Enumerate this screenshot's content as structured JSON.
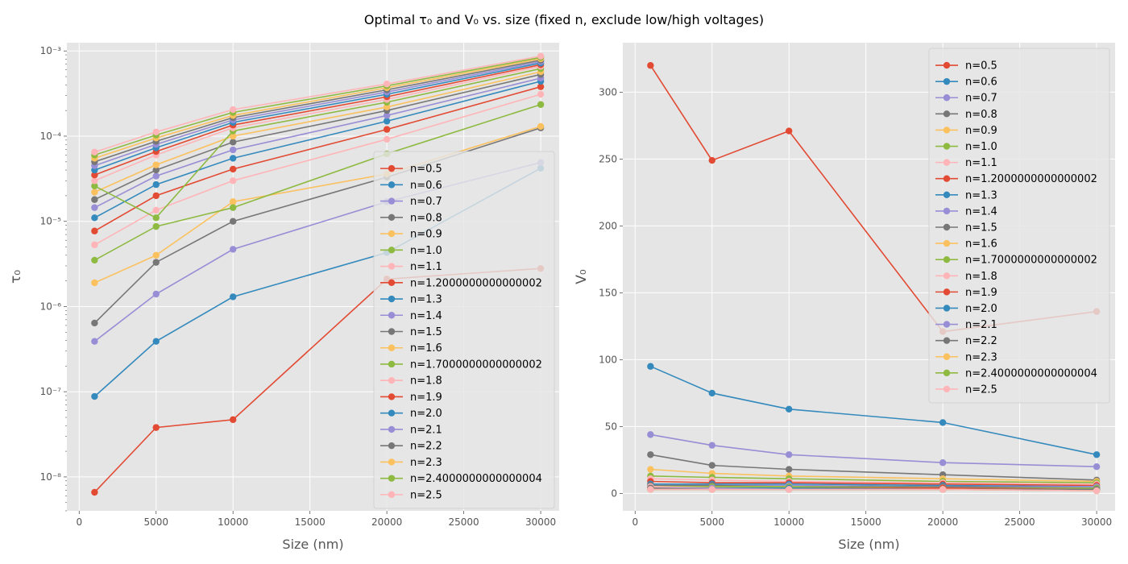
{
  "figure_title": "Optimal τ₀ and V₀ vs. size (fixed n, exclude low/high voltages)",
  "palette": [
    "#E24A33",
    "#348ABD",
    "#988ED5",
    "#777777",
    "#FBC15E",
    "#8EBA42",
    "#FFB5B8"
  ],
  "chart_data": [
    {
      "type": "line",
      "xlabel": "Size (nm)",
      "ylabel": "τ₀",
      "yscale": "log",
      "xlim": [
        -800,
        31200
      ],
      "ylim": [
        4e-09,
        0.00125
      ],
      "x_ticks": [
        0,
        5000,
        10000,
        15000,
        20000,
        25000,
        30000
      ],
      "x_tick_labels": [
        "0",
        "5000",
        "10000",
        "15000",
        "20000",
        "25000",
        "30000"
      ],
      "y_ticks": [
        1e-08,
        1e-07,
        1e-06,
        1e-05,
        0.0001,
        0.001
      ],
      "y_tick_labels": [
        "10⁻⁸",
        "10⁻⁷",
        "10⁻⁶",
        "10⁻⁵",
        "10⁻⁴",
        "10⁻³"
      ],
      "grid": true,
      "legend_position": "lower-right",
      "x": [
        1000,
        5000,
        10000,
        20000,
        30000
      ],
      "series": [
        {
          "name": "n=0.5",
          "values": [
            6.6e-09,
            3.8e-08,
            4.7e-08,
            2.1e-06,
            2.8e-06
          ]
        },
        {
          "name": "n=0.6",
          "values": [
            8.8e-08,
            3.9e-07,
            1.3e-06,
            4.3e-06,
            4.2e-05
          ]
        },
        {
          "name": "n=0.7",
          "values": [
            3.9e-07,
            1.4e-06,
            4.7e-06,
            1.7e-05,
            4.9e-05
          ]
        },
        {
          "name": "n=0.8",
          "values": [
            6.4e-07,
            3.3e-06,
            1e-05,
            3.3e-05,
            0.000125
          ]
        },
        {
          "name": "n=0.9",
          "values": [
            1.9e-06,
            4e-06,
            1.7e-05,
            3.6e-05,
            0.00013
          ]
        },
        {
          "name": "n=1.0",
          "values": [
            3.5e-06,
            8.7e-06,
            1.45e-05,
            6.2e-05,
            0.000235
          ]
        },
        {
          "name": "n=1.1",
          "values": [
            5.3e-06,
            1.35e-05,
            3e-05,
            9.2e-05,
            0.00031
          ]
        },
        {
          "name": "n=1.2000000000000002",
          "values": [
            7.7e-06,
            2e-05,
            4.1e-05,
            0.00012,
            0.00038
          ]
        },
        {
          "name": "n=1.3",
          "values": [
            1.1e-05,
            2.7e-05,
            5.5e-05,
            0.00015,
            0.00044
          ]
        },
        {
          "name": "n=1.4",
          "values": [
            1.45e-05,
            3.4e-05,
            6.9e-05,
            0.000175,
            0.00048
          ]
        },
        {
          "name": "n=1.5",
          "values": [
            1.8e-05,
            4e-05,
            8.5e-05,
            0.0002,
            0.00053
          ]
        },
        {
          "name": "n=1.6",
          "values": [
            2.2e-05,
            4.6e-05,
            0.0001,
            0.00022,
            0.00057
          ]
        },
        {
          "name": "n=1.7000000000000002",
          "values": [
            2.6e-05,
            1.1e-05,
            0.000115,
            0.00025,
            0.00062
          ]
        },
        {
          "name": "n=1.8",
          "values": [
            3e-05,
            6e-05,
            0.000125,
            0.00027,
            0.00066
          ]
        },
        {
          "name": "n=1.9",
          "values": [
            3.5e-05,
            6.6e-05,
            0.000135,
            0.00029,
            0.00069
          ]
        },
        {
          "name": "n=2.0",
          "values": [
            4e-05,
            7.3e-05,
            0.000145,
            0.00031,
            0.00072
          ]
        },
        {
          "name": "n=2.1",
          "values": [
            4.5e-05,
            8e-05,
            0.000155,
            0.00033,
            0.00075
          ]
        },
        {
          "name": "n=2.2",
          "values": [
            5e-05,
            8.7e-05,
            0.000165,
            0.00035,
            0.00078
          ]
        },
        {
          "name": "n=2.3",
          "values": [
            5.5e-05,
            9.5e-05,
            0.000175,
            0.00037,
            0.00081
          ]
        },
        {
          "name": "n=2.4000000000000004",
          "values": [
            6e-05,
            0.000103,
            0.00019,
            0.00039,
            0.00084
          ]
        },
        {
          "name": "n=2.5",
          "values": [
            6.5e-05,
            0.000112,
            0.000205,
            0.00041,
            0.00087
          ]
        }
      ]
    },
    {
      "type": "line",
      "xlabel": "Size (nm)",
      "ylabel": "V₀",
      "yscale": "linear",
      "xlim": [
        -800,
        31200
      ],
      "ylim": [
        -13,
        337
      ],
      "x_ticks": [
        0,
        5000,
        10000,
        15000,
        20000,
        25000,
        30000
      ],
      "x_tick_labels": [
        "0",
        "5000",
        "10000",
        "15000",
        "20000",
        "25000",
        "30000"
      ],
      "y_ticks": [
        0,
        50,
        100,
        150,
        200,
        250,
        300
      ],
      "y_tick_labels": [
        "0",
        "50",
        "100",
        "150",
        "200",
        "250",
        "300"
      ],
      "grid": true,
      "legend_position": "upper-right",
      "x": [
        1000,
        5000,
        10000,
        20000,
        30000
      ],
      "series": [
        {
          "name": "n=0.5",
          "values": [
            320,
            249,
            271,
            121,
            136
          ]
        },
        {
          "name": "n=0.6",
          "values": [
            95,
            75,
            63,
            53,
            29
          ]
        },
        {
          "name": "n=0.7",
          "values": [
            44,
            36,
            29,
            23,
            20
          ]
        },
        {
          "name": "n=0.8",
          "values": [
            29,
            21,
            18,
            14,
            10
          ]
        },
        {
          "name": "n=0.9",
          "values": [
            18,
            15,
            13,
            11,
            9
          ]
        },
        {
          "name": "n=1.0",
          "values": [
            13,
            12,
            11,
            9,
            8
          ]
        },
        {
          "name": "n=1.1",
          "values": [
            11,
            10,
            9,
            8,
            7
          ]
        },
        {
          "name": "n=1.2000000000000002",
          "values": [
            9,
            8,
            8,
            7,
            6
          ]
        },
        {
          "name": "n=1.3",
          "values": [
            7,
            7,
            7,
            6,
            5
          ]
        },
        {
          "name": "n=1.4",
          "values": [
            6,
            6,
            6,
            5,
            5
          ]
        },
        {
          "name": "n=1.5",
          "values": [
            6,
            6,
            5,
            5,
            4
          ]
        },
        {
          "name": "n=1.6",
          "values": [
            5,
            5,
            5,
            4,
            4
          ]
        },
        {
          "name": "n=1.7000000000000002",
          "values": [
            5,
            5,
            5,
            4,
            4
          ]
        },
        {
          "name": "n=1.8",
          "values": [
            5,
            4,
            4,
            4,
            3
          ]
        },
        {
          "name": "n=1.9",
          "values": [
            4,
            4,
            4,
            4,
            3
          ]
        },
        {
          "name": "n=2.0",
          "values": [
            4,
            4,
            4,
            3,
            3
          ]
        },
        {
          "name": "n=2.1",
          "values": [
            4,
            4,
            3,
            3,
            3
          ]
        },
        {
          "name": "n=2.2",
          "values": [
            4,
            3,
            3,
            3,
            3
          ]
        },
        {
          "name": "n=2.3",
          "values": [
            3,
            3,
            3,
            3,
            2
          ]
        },
        {
          "name": "n=2.4000000000000004",
          "values": [
            3,
            3,
            3,
            3,
            2
          ]
        },
        {
          "name": "n=2.5",
          "values": [
            3,
            3,
            3,
            3,
            2
          ]
        }
      ]
    }
  ]
}
